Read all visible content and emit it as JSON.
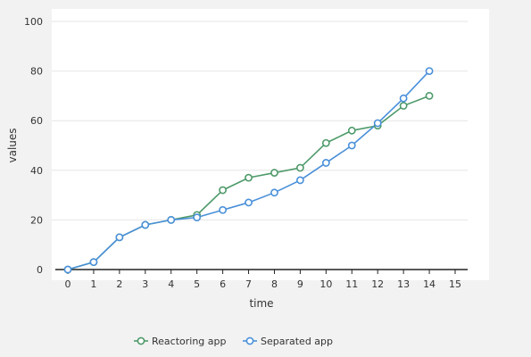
{
  "chart_data": {
    "type": "line",
    "xlabel": "time",
    "ylabel": "values",
    "xlim": [
      0,
      15
    ],
    "ylim": [
      0,
      100
    ],
    "x_ticks": [
      0,
      1,
      2,
      3,
      4,
      5,
      6,
      7,
      8,
      9,
      10,
      11,
      12,
      13,
      14,
      15
    ],
    "y_ticks": [
      0,
      20,
      40,
      60,
      80,
      100
    ],
    "grid": "horizontal",
    "legend_position": "bottom-center",
    "x": [
      0,
      1,
      2,
      3,
      4,
      5,
      6,
      7,
      8,
      9,
      10,
      11,
      12,
      13,
      14
    ],
    "series": [
      {
        "name": "Reactoring app",
        "color": "#4e9a6a",
        "values": [
          0,
          3,
          13,
          18,
          20,
          22,
          32,
          37,
          39,
          41,
          51,
          56,
          58,
          66,
          70
        ]
      },
      {
        "name": "Separated app",
        "color": "#4a90d9",
        "values": [
          0,
          3,
          13,
          18,
          20,
          21,
          24,
          27,
          31,
          36,
          43,
          50,
          59,
          69,
          80
        ]
      }
    ]
  }
}
